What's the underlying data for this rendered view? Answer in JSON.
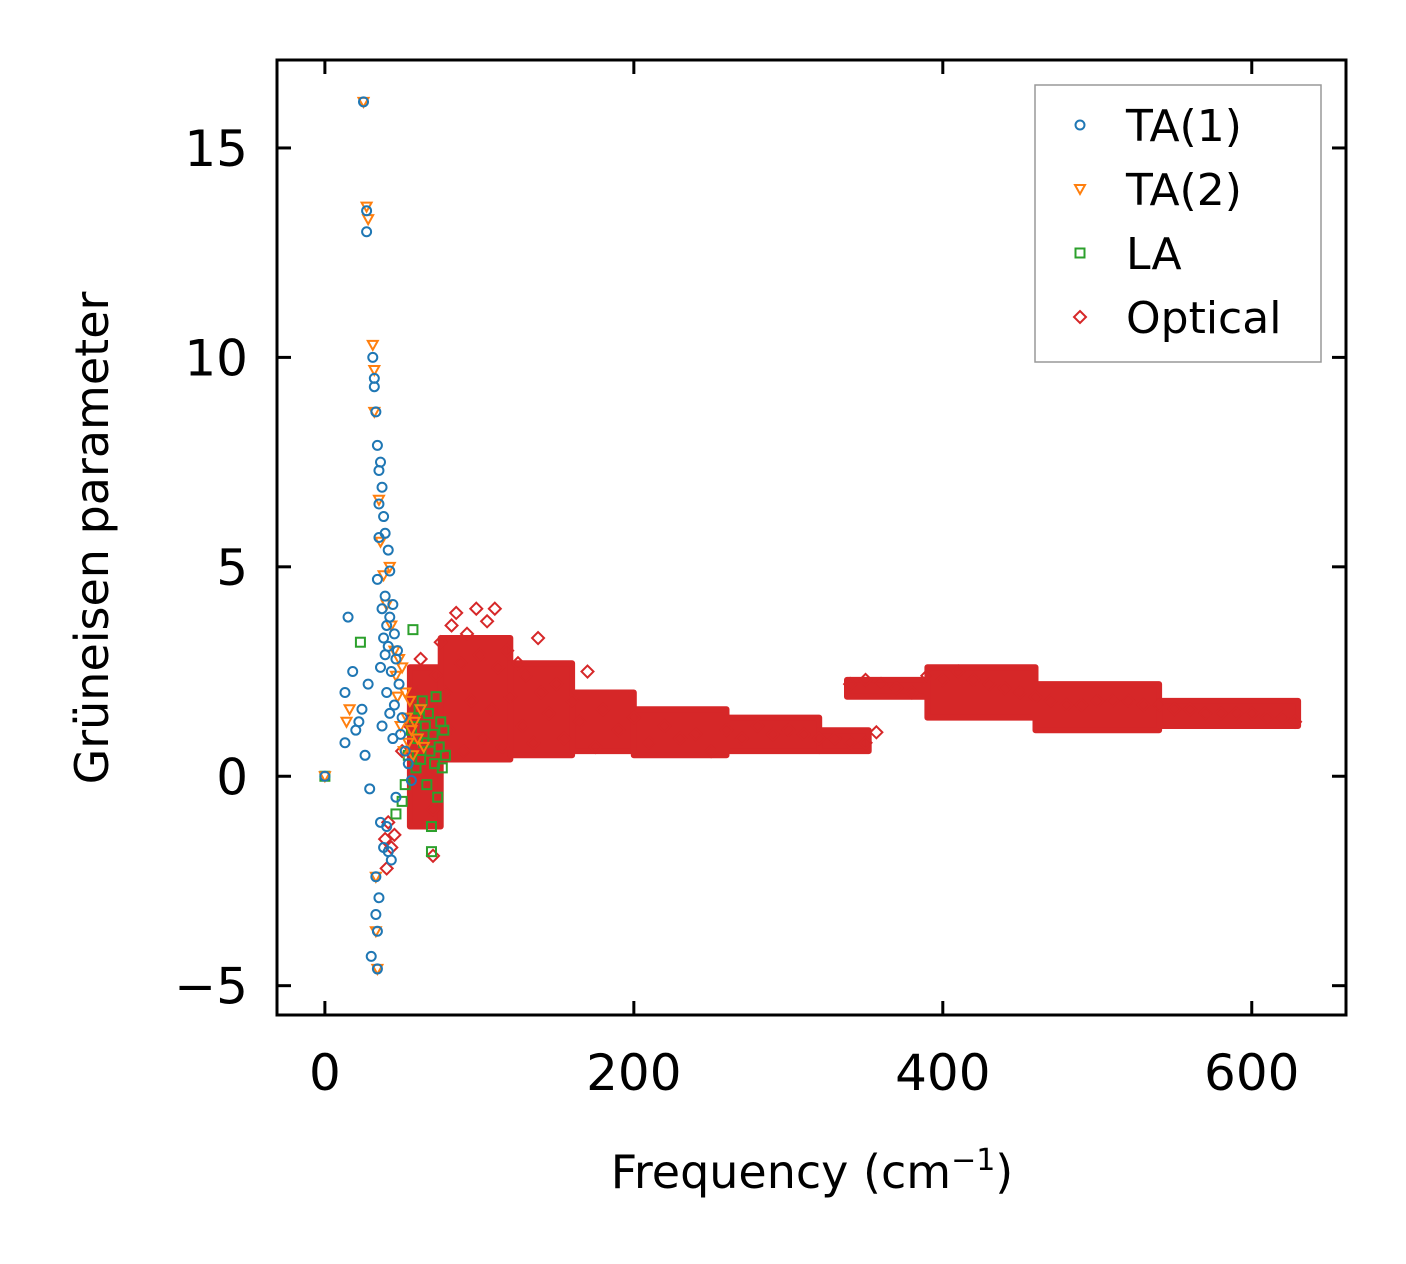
{
  "chart_data": {
    "type": "scatter",
    "title": "",
    "xlabel": "Frequency (cm",
    "xlabel_sup": "−1",
    "xlabel_close": ")",
    "ylabel": "Grüneisen parameter",
    "xlim": [
      -31,
      661
    ],
    "ylim": [
      -5.7,
      17.1
    ],
    "xticks": [
      0,
      200,
      400,
      600
    ],
    "xtick_labels": [
      "0",
      "200",
      "400",
      "600"
    ],
    "yticks": [
      -5,
      0,
      5,
      10,
      15
    ],
    "ytick_labels": [
      "−5",
      "0",
      "5",
      "10",
      "15"
    ],
    "grid": false,
    "legend_position": "top-right",
    "series": [
      {
        "name": "TA(1)",
        "marker": "circle",
        "color": "#1f77b4",
        "points": [
          [
            0,
            0
          ],
          [
            13,
            0.8
          ],
          [
            13,
            2.0
          ],
          [
            15,
            3.8
          ],
          [
            18,
            2.5
          ],
          [
            20,
            1.1
          ],
          [
            22,
            1.3
          ],
          [
            24,
            1.6
          ],
          [
            25,
            16.1
          ],
          [
            26,
            0.5
          ],
          [
            27,
            13.5
          ],
          [
            27,
            13.0
          ],
          [
            28,
            2.2
          ],
          [
            29,
            -0.3
          ],
          [
            30,
            -4.3
          ],
          [
            31,
            10.0
          ],
          [
            32,
            9.5
          ],
          [
            32,
            9.3
          ],
          [
            33,
            -2.4
          ],
          [
            33,
            -3.3
          ],
          [
            33,
            8.7
          ],
          [
            34,
            7.9
          ],
          [
            34,
            -3.7
          ],
          [
            34,
            -4.6
          ],
          [
            34,
            4.7
          ],
          [
            35,
            7.3
          ],
          [
            35,
            -2.9
          ],
          [
            35,
            6.5
          ],
          [
            35,
            5.7
          ],
          [
            36,
            7.5
          ],
          [
            36,
            2.6
          ],
          [
            36,
            -1.1
          ],
          [
            37,
            6.9
          ],
          [
            37,
            4.0
          ],
          [
            37,
            1.2
          ],
          [
            38,
            6.2
          ],
          [
            38,
            3.3
          ],
          [
            38,
            -1.7
          ],
          [
            39,
            5.8
          ],
          [
            39,
            4.3
          ],
          [
            39,
            2.9
          ],
          [
            40,
            3.6
          ],
          [
            40,
            -1.2
          ],
          [
            40,
            2.0
          ],
          [
            41,
            5.4
          ],
          [
            41,
            3.1
          ],
          [
            41,
            -1.8
          ],
          [
            42,
            4.9
          ],
          [
            42,
            3.8
          ],
          [
            42,
            1.5
          ],
          [
            43,
            2.5
          ],
          [
            43,
            -2.0
          ],
          [
            44,
            4.1
          ],
          [
            44,
            0.9
          ],
          [
            45,
            3.4
          ],
          [
            45,
            1.7
          ],
          [
            46,
            2.8
          ],
          [
            46,
            -0.5
          ],
          [
            47,
            3.0
          ],
          [
            48,
            2.2
          ],
          [
            49,
            1.0
          ],
          [
            50,
            1.4
          ],
          [
            52,
            0.6
          ],
          [
            54,
            0.3
          ],
          [
            56,
            -0.1
          ]
        ]
      },
      {
        "name": "TA(2)",
        "marker": "triangle-down",
        "color": "#ff7f0e",
        "points": [
          [
            0,
            0
          ],
          [
            14,
            1.3
          ],
          [
            16,
            1.6
          ],
          [
            25,
            16.1
          ],
          [
            27,
            13.6
          ],
          [
            28,
            13.3
          ],
          [
            31,
            10.3
          ],
          [
            32,
            9.7
          ],
          [
            32,
            8.7
          ],
          [
            33,
            -2.4
          ],
          [
            33,
            -3.7
          ],
          [
            34,
            -4.6
          ],
          [
            35,
            6.6
          ],
          [
            36,
            5.6
          ],
          [
            38,
            4.8
          ],
          [
            40,
            4.1
          ],
          [
            42,
            5.0
          ],
          [
            43,
            3.6
          ],
          [
            45,
            3.0
          ],
          [
            46,
            2.4
          ],
          [
            47,
            1.9
          ],
          [
            48,
            2.8
          ],
          [
            49,
            1.2
          ],
          [
            50,
            2.6
          ],
          [
            51,
            0.6
          ],
          [
            52,
            2.0
          ],
          [
            53,
            1.4
          ],
          [
            54,
            0.8
          ],
          [
            55,
            1.8
          ],
          [
            56,
            1.1
          ],
          [
            57,
            0.5
          ],
          [
            58,
            1.3
          ],
          [
            60,
            0.9
          ],
          [
            62,
            1.6
          ],
          [
            64,
            0.7
          ]
        ]
      },
      {
        "name": "LA",
        "marker": "square",
        "color": "#2ca02c",
        "points": [
          [
            0,
            0
          ],
          [
            23,
            3.2
          ],
          [
            46,
            -0.9
          ],
          [
            50,
            -0.6
          ],
          [
            52,
            -0.2
          ],
          [
            54,
            0.5
          ],
          [
            56,
            1.1
          ],
          [
            57,
            3.5
          ],
          [
            58,
            1.4
          ],
          [
            59,
            0.2
          ],
          [
            60,
            0.9
          ],
          [
            61,
            1.6
          ],
          [
            62,
            0.4
          ],
          [
            63,
            1.8
          ],
          [
            64,
            0.8
          ],
          [
            65,
            1.2
          ],
          [
            66,
            -0.2
          ],
          [
            67,
            1.5
          ],
          [
            68,
            0.6
          ],
          [
            69,
            -1.2
          ],
          [
            69,
            -1.8
          ],
          [
            70,
            1.0
          ],
          [
            71,
            0.3
          ],
          [
            72,
            1.9
          ],
          [
            73,
            -0.5
          ],
          [
            74,
            0.7
          ],
          [
            75,
            1.3
          ],
          [
            76,
            0.2
          ],
          [
            77,
            1.1
          ],
          [
            78,
            0.5
          ]
        ]
      },
      {
        "name": "Optical",
        "marker": "diamond",
        "color": "#d62728",
        "points": [
          [
            39,
            -1.5
          ],
          [
            40,
            -2.2
          ],
          [
            41,
            -1.1
          ],
          [
            43,
            -1.7
          ],
          [
            45,
            -1.4
          ],
          [
            50,
            0.6
          ],
          [
            55,
            1.2
          ],
          [
            60,
            2.0
          ],
          [
            62,
            2.8
          ],
          [
            65,
            1.5
          ],
          [
            68,
            0.7
          ],
          [
            70,
            -0.8
          ],
          [
            70,
            -1.9
          ],
          [
            72,
            2.4
          ],
          [
            75,
            3.2
          ],
          [
            78,
            2.0
          ],
          [
            80,
            1.1
          ],
          [
            82,
            3.6
          ],
          [
            85,
            3.9
          ],
          [
            88,
            2.7
          ],
          [
            90,
            0.6
          ],
          [
            92,
            3.4
          ],
          [
            95,
            1.8
          ],
          [
            98,
            4.0
          ],
          [
            100,
            2.9
          ],
          [
            102,
            0.9
          ],
          [
            105,
            3.7
          ],
          [
            108,
            1.6
          ],
          [
            110,
            4.0
          ],
          [
            112,
            2.6
          ],
          [
            115,
            0.7
          ],
          [
            118,
            3.0
          ],
          [
            120,
            1.9
          ],
          [
            125,
            2.7
          ],
          [
            128,
            1.2
          ],
          [
            130,
            2.4
          ],
          [
            135,
            0.8
          ],
          [
            138,
            3.3
          ],
          [
            140,
            2.0
          ],
          [
            145,
            1.5
          ],
          [
            150,
            2.2
          ],
          [
            155,
            0.9
          ],
          [
            160,
            1.8
          ],
          [
            165,
            1.3
          ],
          [
            170,
            2.5
          ],
          [
            175,
            0.7
          ],
          [
            180,
            1.6
          ],
          [
            190,
            1.1
          ],
          [
            200,
            1.4
          ],
          [
            210,
            0.8
          ],
          [
            220,
            1.2
          ],
          [
            230,
            0.9
          ],
          [
            240,
            1.0
          ],
          [
            250,
            0.6
          ],
          [
            260,
            1.1
          ],
          [
            270,
            0.9
          ],
          [
            280,
            1.2
          ],
          [
            290,
            1.0
          ],
          [
            300,
            1.1
          ],
          [
            310,
            1.0
          ],
          [
            320,
            0.9
          ],
          [
            330,
            0.9
          ],
          [
            340,
            0.8
          ],
          [
            350,
            0.8
          ],
          [
            357,
            1.05
          ],
          [
            340,
            2.2
          ],
          [
            350,
            2.3
          ],
          [
            360,
            2.2
          ],
          [
            370,
            2.1
          ],
          [
            380,
            2.0
          ],
          [
            390,
            2.4
          ],
          [
            400,
            2.3
          ],
          [
            410,
            2.5
          ],
          [
            420,
            2.3
          ],
          [
            430,
            2.2
          ],
          [
            440,
            2.1
          ],
          [
            450,
            2.0
          ],
          [
            460,
            1.9
          ],
          [
            470,
            1.8
          ],
          [
            480,
            1.7
          ],
          [
            490,
            1.7
          ],
          [
            500,
            1.8
          ],
          [
            510,
            1.8
          ],
          [
            520,
            1.8
          ],
          [
            530,
            1.7
          ],
          [
            540,
            1.7
          ],
          [
            550,
            1.6
          ],
          [
            560,
            1.6
          ],
          [
            570,
            1.5
          ],
          [
            580,
            1.5
          ],
          [
            590,
            1.5
          ],
          [
            600,
            1.5
          ],
          [
            610,
            1.4
          ],
          [
            620,
            1.4
          ],
          [
            628,
            1.3
          ]
        ]
      }
    ],
    "optical_bands": [
      {
        "x0": 55,
        "x1": 75,
        "y_low": -1.2,
        "y_high": 2.6
      },
      {
        "x0": 75,
        "x1": 120,
        "y_low": 0.4,
        "y_high": 3.3
      },
      {
        "x0": 120,
        "x1": 160,
        "y_low": 0.5,
        "y_high": 2.7
      },
      {
        "x0": 160,
        "x1": 200,
        "y_low": 0.6,
        "y_high": 2.0
      },
      {
        "x0": 200,
        "x1": 260,
        "y_low": 0.5,
        "y_high": 1.6
      },
      {
        "x0": 260,
        "x1": 320,
        "y_low": 0.6,
        "y_high": 1.4
      },
      {
        "x0": 320,
        "x1": 352,
        "y_low": 0.6,
        "y_high": 1.1
      },
      {
        "x0": 338,
        "x1": 390,
        "y_low": 1.9,
        "y_high": 2.3
      },
      {
        "x0": 390,
        "x1": 460,
        "y_low": 1.4,
        "y_high": 2.6
      },
      {
        "x0": 460,
        "x1": 540,
        "y_low": 1.1,
        "y_high": 2.2
      },
      {
        "x0": 540,
        "x1": 630,
        "y_low": 1.2,
        "y_high": 1.8
      }
    ]
  }
}
